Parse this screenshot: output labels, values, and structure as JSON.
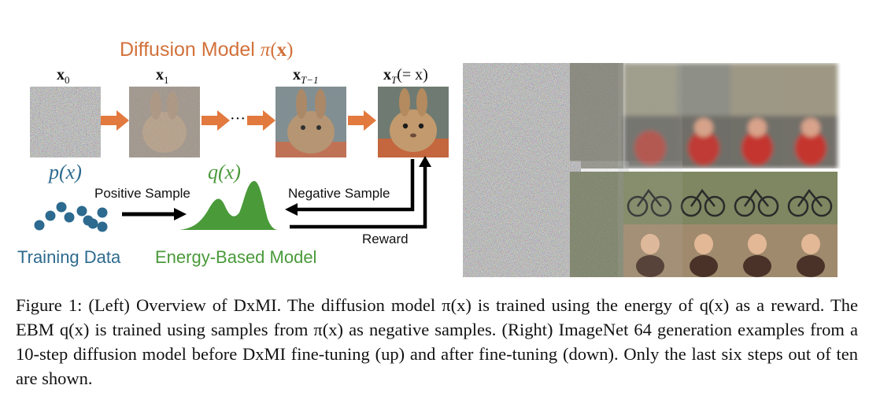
{
  "diagram": {
    "title_prefix": "Diffusion Model ",
    "title_math": "π",
    "title_arg_open": "(",
    "title_arg_x": "x",
    "title_arg_close": ")",
    "frames": [
      {
        "var": "x",
        "sub": "0"
      },
      {
        "var": "x",
        "sub": "1"
      },
      {
        "var": "x",
        "sub": "T−1"
      },
      {
        "var": "x",
        "sub": "T",
        "suffix": "(= x)"
      }
    ],
    "ellipsis": "···",
    "p_label": "p(x)",
    "q_label": "q(x)",
    "positive_sample": "Positive Sample",
    "negative_sample": "Negative Sample",
    "reward": "Reward",
    "training_data": "Training Data",
    "ebm": "Energy-Based Model",
    "colors": {
      "orange": "#d2713a",
      "blue": "#2d6a8f",
      "green": "#4a9a3a"
    }
  },
  "caption": {
    "text": "Figure 1: (Left) Overview of DxMI. The diffusion model π(x) is trained using the energy of q(x) as a reward. The EBM q(x) is trained using samples from π(x) as negative samples. (Right) ImageNet 64 generation examples from a 10-step diffusion model before DxMI fine-tuning (up) and after fine-tuning (down). Only the last six steps out of ten are shown."
  }
}
